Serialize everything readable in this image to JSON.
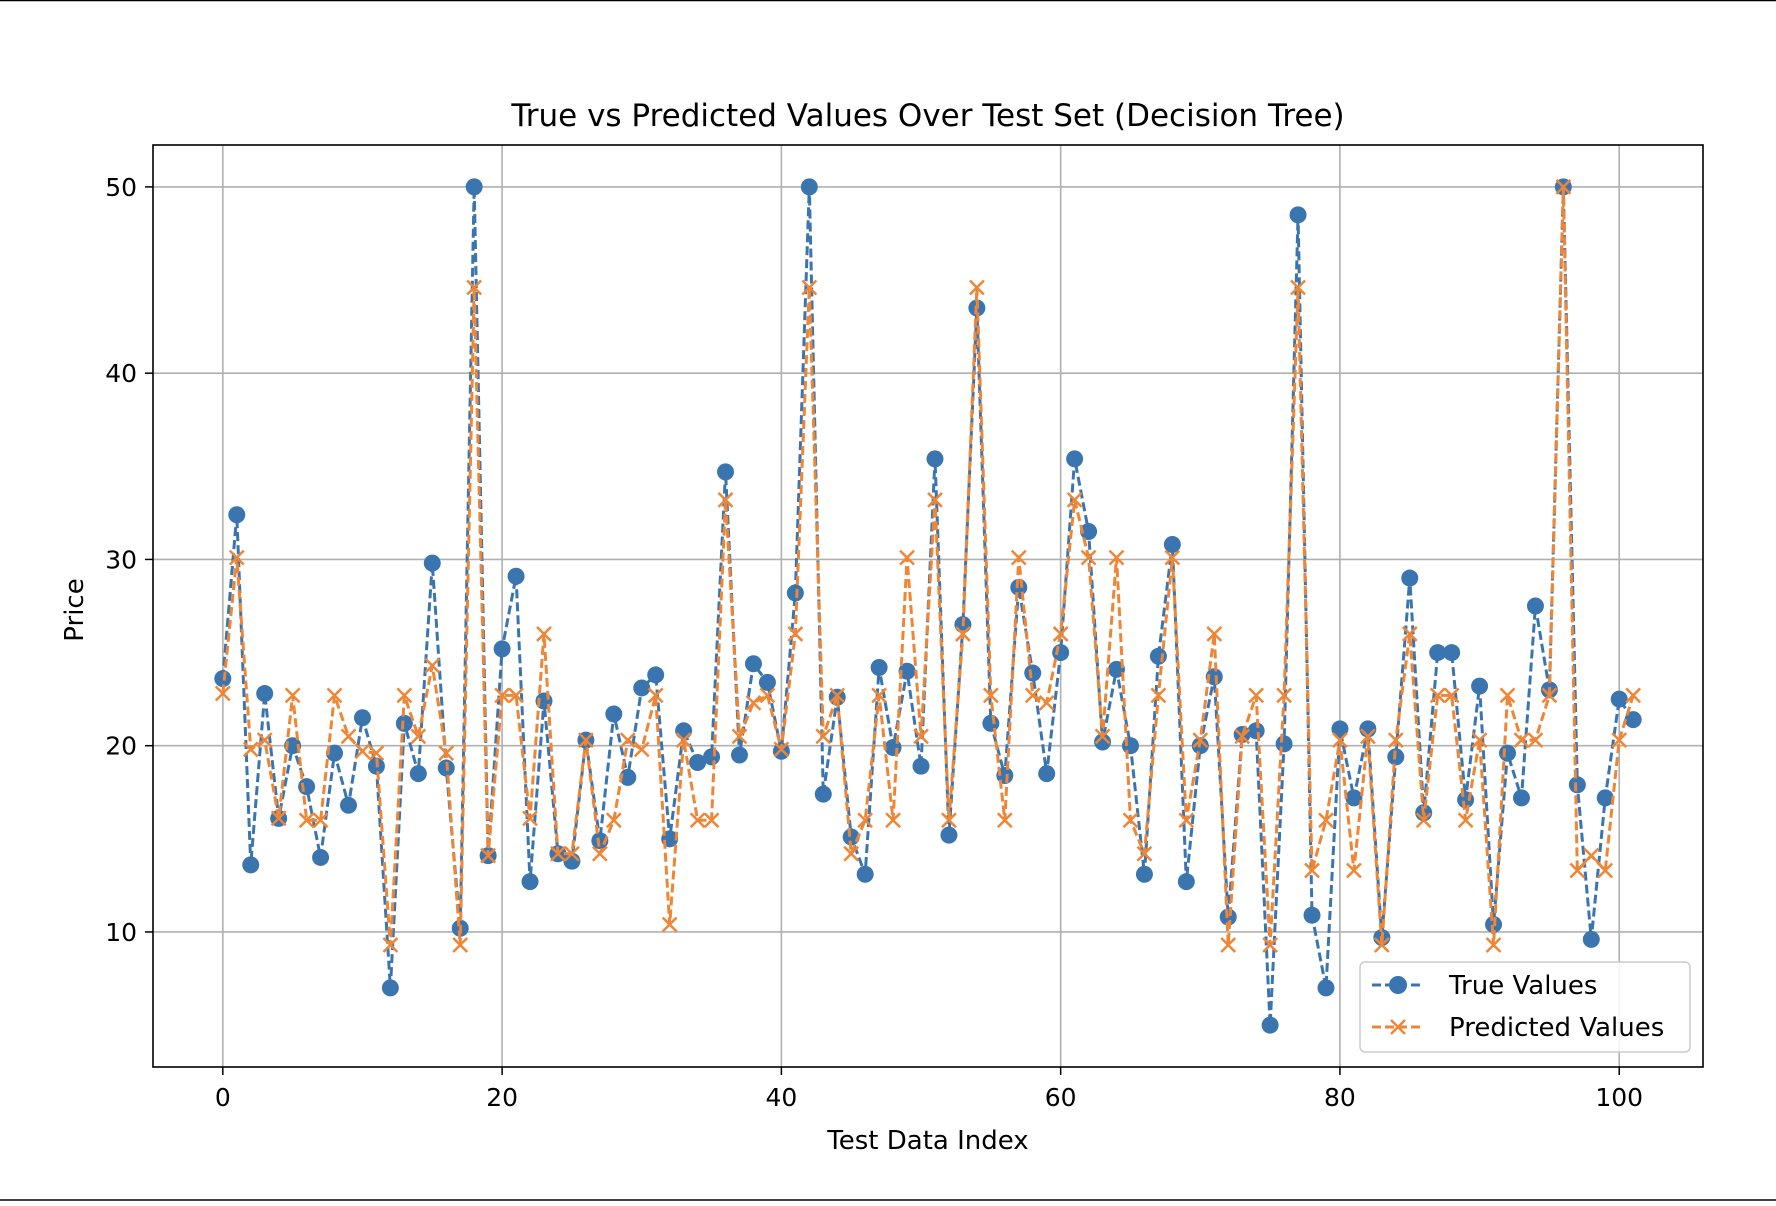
{
  "chart_data": {
    "type": "line",
    "title": "True vs Predicted Values Over Test Set (Decision Tree)",
    "xlabel": "Test Data Index",
    "ylabel": "Price",
    "xlim": [
      -5,
      106
    ],
    "ylim": [
      2.75,
      52.25
    ],
    "xticks": [
      0,
      20,
      40,
      60,
      80,
      100
    ],
    "yticks": [
      10,
      20,
      30,
      40,
      50
    ],
    "grid": true,
    "legend": "lower right",
    "series": [
      {
        "name": "True Values",
        "color": "#3a75b0",
        "marker": "circle",
        "linestyle": "dashed",
        "values": [
          23.6,
          32.4,
          13.6,
          22.8,
          16.1,
          20.0,
          17.8,
          14.0,
          19.6,
          16.8,
          21.5,
          18.9,
          7.0,
          21.2,
          18.5,
          29.8,
          18.8,
          10.2,
          50.0,
          14.1,
          25.2,
          29.1,
          12.7,
          22.4,
          14.2,
          13.8,
          20.3,
          14.9,
          21.7,
          18.3,
          23.1,
          23.8,
          15.0,
          20.8,
          19.1,
          19.4,
          34.7,
          19.5,
          24.4,
          23.4,
          19.7,
          28.2,
          50.0,
          17.4,
          22.6,
          15.1,
          13.1,
          24.2,
          19.9,
          24.0,
          18.9,
          35.4,
          15.2,
          26.5,
          43.5,
          21.2,
          18.4,
          28.5,
          23.9,
          18.5,
          25.0,
          35.4,
          31.5,
          20.2,
          24.1,
          20.0,
          13.1,
          24.8,
          30.8,
          12.7,
          20.0,
          23.7,
          10.8,
          20.6,
          20.8,
          5.0,
          20.1,
          48.5,
          10.9,
          7.0,
          20.9,
          17.2,
          20.9,
          9.7,
          19.4,
          29.0,
          16.4,
          25.0,
          25.0,
          17.1,
          23.2,
          10.4,
          19.6,
          17.2,
          27.5,
          23.0,
          50.0,
          17.9,
          9.6,
          17.2,
          22.5,
          21.4
        ]
      },
      {
        "name": "Predicted Values",
        "color": "#ef8636",
        "marker": "x",
        "linestyle": "dashed",
        "values": [
          22.8,
          30.1,
          19.8,
          20.3,
          16.1,
          22.7,
          16.0,
          16.0,
          22.7,
          20.5,
          19.7,
          19.6,
          9.3,
          22.7,
          20.5,
          24.3,
          19.6,
          9.3,
          44.6,
          14.1,
          22.7,
          22.7,
          16.1,
          26.0,
          14.2,
          14.2,
          20.3,
          14.2,
          16.0,
          20.3,
          19.8,
          22.7,
          10.4,
          20.3,
          16.0,
          16.0,
          33.2,
          20.5,
          22.3,
          22.7,
          19.8,
          26.0,
          44.6,
          20.5,
          22.7,
          14.2,
          16.0,
          22.7,
          16.0,
          30.1,
          20.5,
          33.2,
          16.0,
          26.0,
          44.6,
          22.7,
          16.0,
          30.1,
          22.7,
          22.3,
          26.0,
          33.2,
          30.1,
          20.5,
          30.1,
          16.0,
          14.2,
          22.7,
          30.1,
          16.0,
          20.3,
          26.0,
          9.3,
          20.5,
          22.7,
          9.3,
          22.7,
          44.6,
          13.3,
          16.0,
          20.3,
          13.3,
          20.5,
          9.3,
          20.3,
          26.0,
          16.0,
          22.7,
          22.7,
          16.0,
          20.3,
          9.3,
          22.7,
          20.3,
          20.3,
          22.7,
          50.0,
          13.3,
          14.1,
          13.3,
          20.3,
          22.7
        ]
      }
    ]
  }
}
